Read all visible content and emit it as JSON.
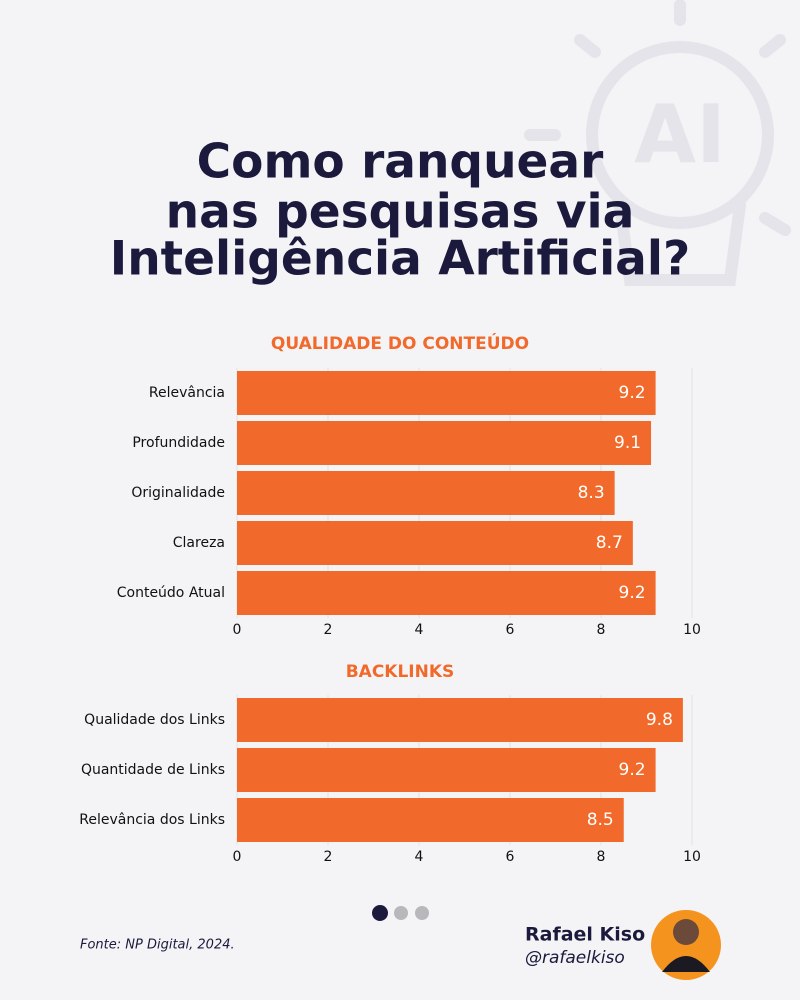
{
  "title": [
    "Como ranquear",
    "nas pesquisas via",
    "Inteligência Artificial?"
  ],
  "chart_data": [
    {
      "type": "bar",
      "title": "QUALIDADE DO CONTEÚDO",
      "categories": [
        "Relevância",
        "Profundidade",
        "Originalidade",
        "Clareza",
        "Conteúdo Atual"
      ],
      "values": [
        9.2,
        9.1,
        8.3,
        8.7,
        9.2
      ],
      "color": "#f26a2b",
      "xlim": [
        0,
        10
      ],
      "xticks": [
        0,
        2,
        4,
        6,
        8,
        10
      ],
      "grid": true
    },
    {
      "type": "bar",
      "title": "BACKLINKS",
      "categories": [
        "Qualidade dos Links",
        "Quantidade de Links",
        "Relevância dos Links"
      ],
      "values": [
        9.8,
        9.2,
        8.5
      ],
      "color": "#f26a2b",
      "xlim": [
        0,
        10
      ],
      "xticks": [
        0,
        2,
        4,
        6,
        8,
        10
      ],
      "grid": true
    }
  ],
  "source": "Fonte: NP Digital, 2024.",
  "author": {
    "name": "Rafael Kiso",
    "handle": "@rafaelkiso"
  }
}
